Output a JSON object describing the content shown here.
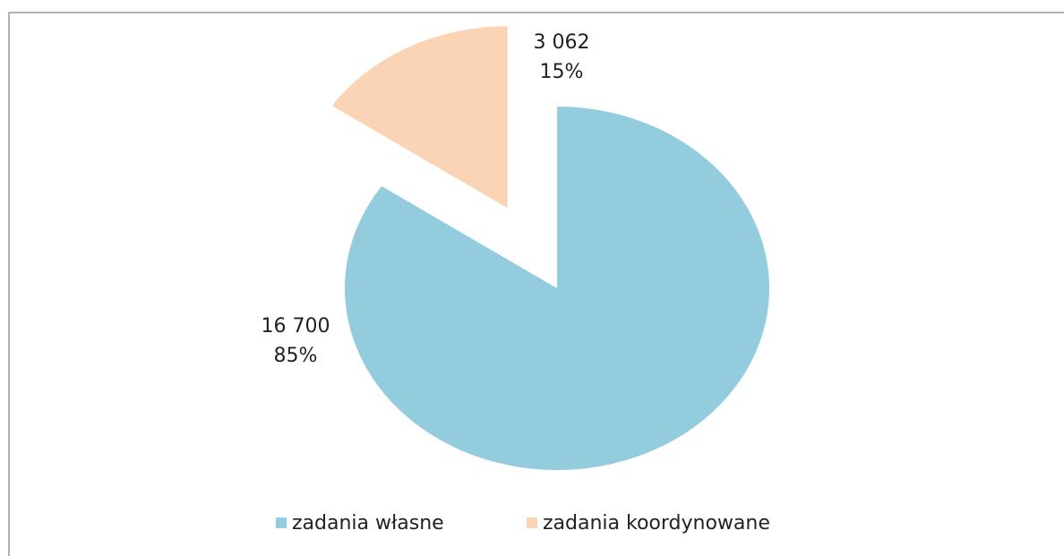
{
  "chart_data": {
    "type": "pie",
    "categories": [
      "zadania własne",
      "zadania koordynowane"
    ],
    "values": [
      16700,
      3062
    ],
    "value_labels": [
      "16 700",
      "3 062"
    ],
    "percents": [
      85,
      15
    ],
    "percent_labels": [
      "85%",
      "15%"
    ],
    "colors": [
      "#93cddd",
      "#fad4b4"
    ],
    "exploded": [
      false,
      true
    ],
    "legend": "bottom"
  }
}
